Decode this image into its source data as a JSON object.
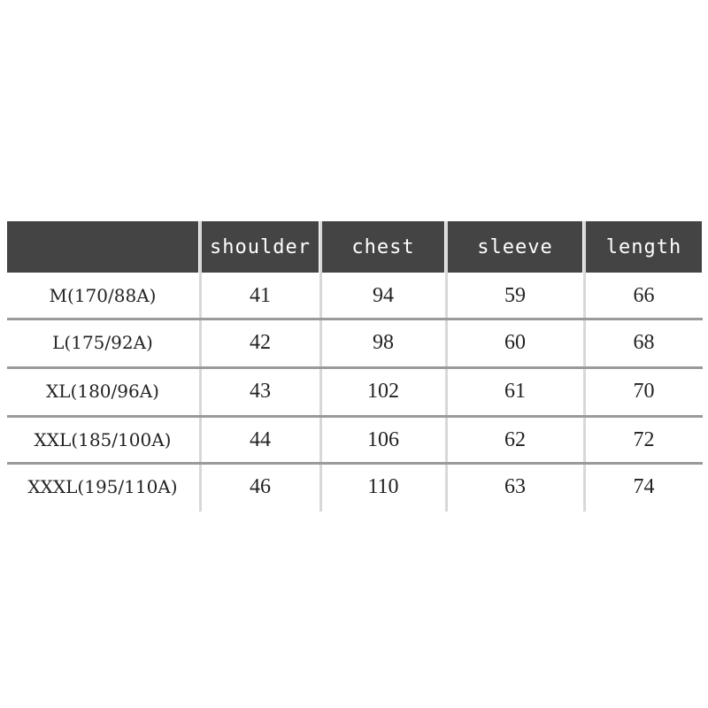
{
  "table": {
    "headers": [
      "",
      "shoulder",
      "chest",
      "sleeve",
      "length"
    ],
    "rows": [
      [
        "M(170/88A)",
        "41",
        "94",
        "59",
        "66"
      ],
      [
        "L(175/92A)",
        "42",
        "98",
        "60",
        "68"
      ],
      [
        "XL(180/96A)",
        "43",
        "102",
        "61",
        "70"
      ],
      [
        "XXL(185/100A)",
        "44",
        "106",
        "62",
        "72"
      ],
      [
        "XXXL(195/110A)",
        "46",
        "110",
        "63",
        "74"
      ]
    ],
    "header_color": "#444444"
  }
}
